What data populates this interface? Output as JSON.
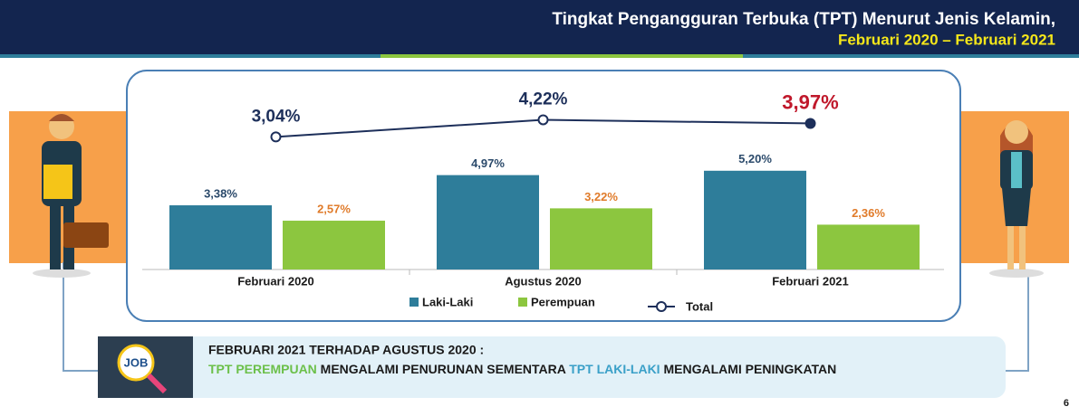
{
  "header": {
    "title": "Tingkat Pengangguran Terbuka (TPT) Menurut Jenis Kelamin,",
    "subtitle": "Februari 2020 – Februari 2021"
  },
  "chart_data": {
    "type": "bar",
    "categories": [
      "Februari 2020",
      "Agustus 2020",
      "Februari 2021"
    ],
    "series": [
      {
        "name": "Laki-Laki",
        "color": "#2e7d9a",
        "values": [
          3.38,
          4.97,
          5.2
        ],
        "value_labels": [
          "3,38%",
          "4,97%",
          "5,20%"
        ]
      },
      {
        "name": "Perempuan",
        "color": "#8cc63f",
        "values": [
          2.57,
          3.22,
          2.36
        ],
        "value_labels": [
          "2,57%",
          "3,22%",
          "2,36%"
        ]
      },
      {
        "name": "Total",
        "type": "line",
        "color": "#1d2f5a",
        "values": [
          3.04,
          4.22,
          3.97
        ],
        "value_labels": [
          "3,04%",
          "4,22%",
          "3,97%"
        ]
      }
    ]
  },
  "note": {
    "icon": "JOB",
    "heading": "FEBRUARI 2021 TERHADAP AGUSTUS 2020 :",
    "parts": [
      "TPT PEREMPUAN",
      " MENGALAMI PENURUNAN SEMENTARA ",
      "TPT LAKI-LAKI",
      " MENGALAMI PENINGKATAN"
    ]
  },
  "page_number": "6"
}
